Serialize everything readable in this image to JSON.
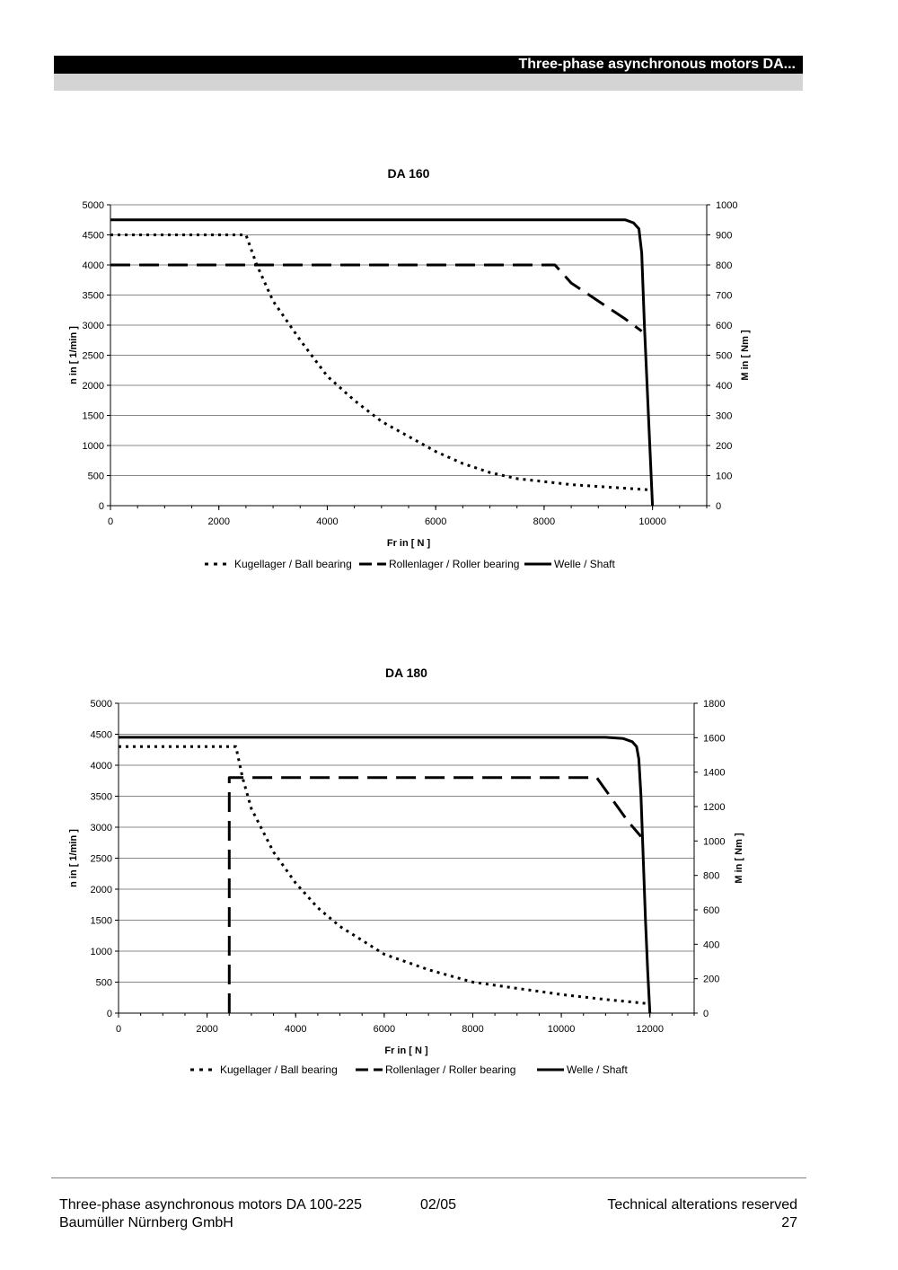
{
  "header": {
    "title": "Three-phase asynchronous motors DA..."
  },
  "footer": {
    "left_line1": "Three-phase asynchronous motors DA 100-225",
    "left_line2": "Baumüller Nürnberg GmbH",
    "middle": "02/05",
    "right_line1": "Technical alterations reserved",
    "right_line2": "27"
  },
  "chart_data": [
    {
      "type": "line",
      "title": "DA 160",
      "xlabel": "Fr in [ N ]",
      "ylabel": "n in [ 1/min ]",
      "y2label": "M in [ Nm ]",
      "xlim": [
        0,
        11000
      ],
      "ylim": [
        0,
        5000
      ],
      "y2lim": [
        0,
        1000
      ],
      "x_ticks": [
        "0",
        "2000",
        "4000",
        "6000",
        "8000",
        "10000"
      ],
      "y_ticks": [
        "0",
        "500",
        "1000",
        "1500",
        "2000",
        "2500",
        "3000",
        "3500",
        "4000",
        "4500",
        "5000"
      ],
      "y2_ticks": [
        "0",
        "100",
        "200",
        "300",
        "400",
        "500",
        "600",
        "700",
        "800",
        "900",
        "1000"
      ],
      "grid": "horizontal",
      "legend_position": "bottom",
      "series": [
        {
          "name": "Kugellager / Ball bearing",
          "style": "dotted",
          "x": [
            0,
            2500,
            2700,
            3000,
            3500,
            4000,
            4500,
            5000,
            5500,
            6000,
            6500,
            7000,
            7500,
            8000,
            8500,
            9000,
            9500,
            10000
          ],
          "y": [
            4500,
            4500,
            4000,
            3400,
            2750,
            2150,
            1750,
            1400,
            1150,
            900,
            700,
            550,
            450,
            400,
            350,
            320,
            290,
            260
          ]
        },
        {
          "name": "Rollenlager / Roller bearing",
          "style": "dashed",
          "x": [
            0,
            8200,
            8500,
            9000,
            9500,
            9800
          ],
          "y": [
            4000,
            4000,
            3700,
            3400,
            3100,
            2900
          ]
        },
        {
          "name": "Welle / Shaft",
          "style": "solid",
          "x": [
            0,
            9500,
            9650,
            9750,
            9800,
            9850,
            9900,
            9950,
            10000
          ],
          "y": [
            4750,
            4750,
            4700,
            4600,
            4200,
            3000,
            2000,
            1000,
            0
          ]
        }
      ]
    },
    {
      "type": "line",
      "title": "DA 180",
      "xlabel": "Fr in [ N ]",
      "ylabel": "n in [ 1/min ]",
      "y2label": "M in [ Nm ]",
      "xlim": [
        0,
        13000
      ],
      "ylim": [
        0,
        5000
      ],
      "y2lim": [
        0,
        1800
      ],
      "x_ticks": [
        "0",
        "2000",
        "4000",
        "6000",
        "8000",
        "10000",
        "12000"
      ],
      "y_ticks": [
        "0",
        "500",
        "1000",
        "1500",
        "2000",
        "2500",
        "3000",
        "3500",
        "4000",
        "4500",
        "5000"
      ],
      "y2_ticks": [
        "0",
        "200",
        "400",
        "600",
        "800",
        "1000",
        "1200",
        "1400",
        "1600",
        "1800"
      ],
      "grid": "horizontal",
      "legend_position": "bottom",
      "series": [
        {
          "name": "Kugellager / Ball bearing",
          "style": "dotted",
          "x": [
            0,
            2650,
            2800,
            3000,
            3500,
            4000,
            4500,
            5000,
            6000,
            7000,
            8000,
            9000,
            10000,
            11000,
            12000
          ],
          "y": [
            4300,
            4300,
            3800,
            3300,
            2600,
            2100,
            1700,
            1400,
            950,
            700,
            500,
            400,
            300,
            220,
            150
          ]
        },
        {
          "name": "Rollenlager / Roller bearing",
          "style": "dashed",
          "x": [
            2500,
            2500,
            10800,
            11100,
            11500,
            11800
          ],
          "y": [
            0,
            3800,
            3800,
            3500,
            3100,
            2850
          ]
        },
        {
          "name": "Welle / Shaft",
          "style": "solid",
          "x": [
            0,
            10500,
            11000,
            11400,
            11600,
            11700,
            11750,
            11800,
            11850,
            11900,
            11950,
            12000
          ],
          "y": [
            4450,
            4450,
            4450,
            4430,
            4380,
            4300,
            4100,
            3500,
            2500,
            1500,
            700,
            0
          ]
        }
      ]
    }
  ]
}
